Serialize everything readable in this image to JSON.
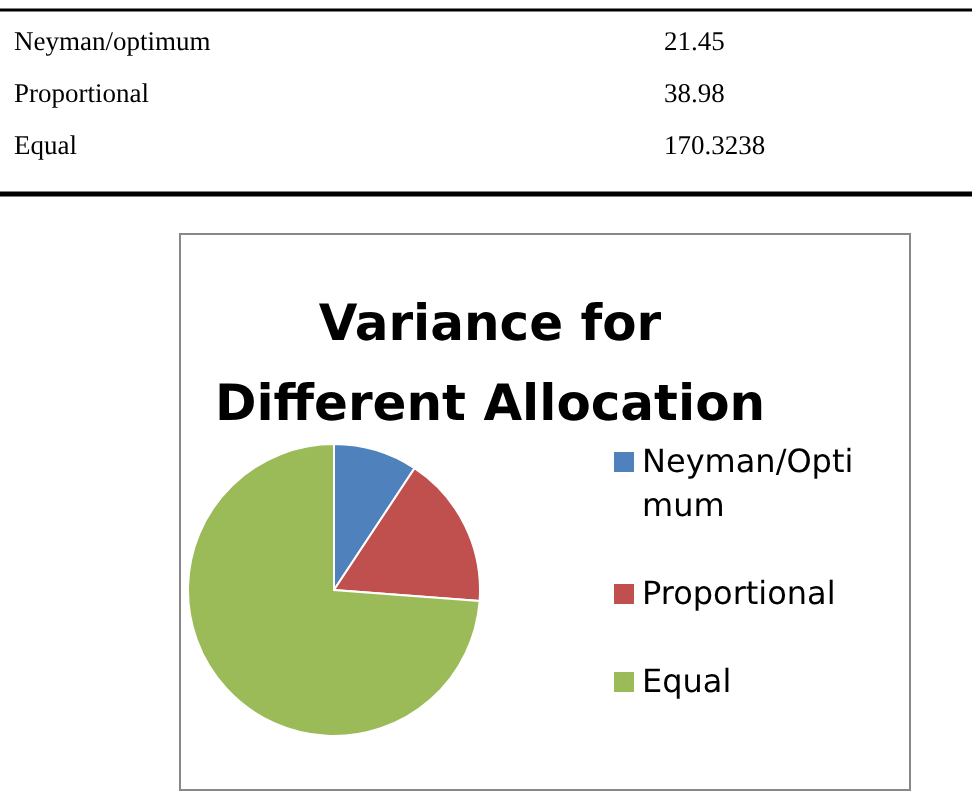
{
  "chart_data": {
    "type": "pie",
    "title": "Variance for Different Allocation",
    "categories": [
      "Neyman/Optimum",
      "Proportional",
      "Equal"
    ],
    "values": [
      9.3,
      16.9,
      73.8
    ],
    "colors": [
      "#4f81bd",
      "#c0504d",
      "#9bbb59"
    ],
    "annotations": [
      "Neyman/optimum",
      "21.45",
      "Proportional",
      "38.98",
      "Equal",
      "170.3238"
    ],
    "legend": "right"
  }
}
